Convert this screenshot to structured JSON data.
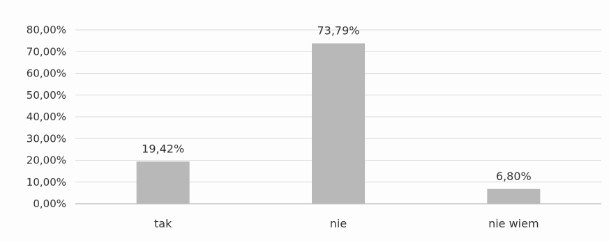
{
  "chart_data": {
    "type": "bar",
    "categories": [
      "tak",
      "nie",
      "nie wiem"
    ],
    "values": [
      19.42,
      73.79,
      6.8
    ],
    "data_labels": [
      "19,42%",
      "73,79%",
      "6,80%"
    ],
    "yticks": [
      "0,00%",
      "10,00%",
      "20,00%",
      "30,00%",
      "40,00%",
      "50,00%",
      "60,00%",
      "70,00%",
      "80,00%"
    ],
    "ylim": [
      0,
      80
    ],
    "grid": true,
    "legend": "none"
  },
  "colors": {
    "bar": "#b8b8b8",
    "grid": "#dcdcdc",
    "axis": "#b9b9b9",
    "text": "#333333"
  }
}
